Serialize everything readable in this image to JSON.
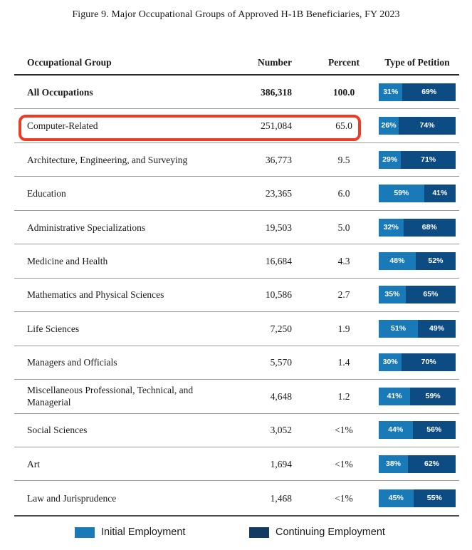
{
  "figure": {
    "title": "Figure 9. Major Occupational Groups of Approved H-1B Beneficiaries, FY 2023"
  },
  "table": {
    "headers": {
      "group": "Occupational Group",
      "number": "Number",
      "percent": "Percent",
      "petition": "Type of Petition"
    },
    "rows": [
      {
        "label": "All Occupations",
        "number": "386,318",
        "percent": "100.0",
        "initial_pct": 31,
        "continuing_pct": 69,
        "initial_label": "31%",
        "continuing_label": "69%"
      },
      {
        "label": "Computer-Related",
        "number": "251,084",
        "percent": "65.0",
        "initial_pct": 26,
        "continuing_pct": 74,
        "initial_label": "26%",
        "continuing_label": "74%"
      },
      {
        "label": "Architecture, Engineering, and Surveying",
        "number": "36,773",
        "percent": "9.5",
        "initial_pct": 29,
        "continuing_pct": 71,
        "initial_label": "29%",
        "continuing_label": "71%"
      },
      {
        "label": "Education",
        "number": "23,365",
        "percent": "6.0",
        "initial_pct": 59,
        "continuing_pct": 41,
        "initial_label": "59%",
        "continuing_label": "41%"
      },
      {
        "label": "Administrative Specializations",
        "number": "19,503",
        "percent": "5.0",
        "initial_pct": 32,
        "continuing_pct": 68,
        "initial_label": "32%",
        "continuing_label": "68%"
      },
      {
        "label": "Medicine and Health",
        "number": "16,684",
        "percent": "4.3",
        "initial_pct": 48,
        "continuing_pct": 52,
        "initial_label": "48%",
        "continuing_label": "52%"
      },
      {
        "label": "Mathematics and Physical Sciences",
        "number": "10,586",
        "percent": "2.7",
        "initial_pct": 35,
        "continuing_pct": 65,
        "initial_label": "35%",
        "continuing_label": "65%"
      },
      {
        "label": "Life Sciences",
        "number": "7,250",
        "percent": "1.9",
        "initial_pct": 51,
        "continuing_pct": 49,
        "initial_label": "51%",
        "continuing_label": "49%"
      },
      {
        "label": "Managers and Officials",
        "number": "5,570",
        "percent": "1.4",
        "initial_pct": 30,
        "continuing_pct": 70,
        "initial_label": "30%",
        "continuing_label": "70%"
      },
      {
        "label": "Miscellaneous Professional, Technical, and Managerial",
        "number": "4,648",
        "percent": "1.2",
        "initial_pct": 41,
        "continuing_pct": 59,
        "initial_label": "41%",
        "continuing_label": "59%"
      },
      {
        "label": "Social Sciences",
        "number": "3,052",
        "percent": "<1%",
        "initial_pct": 44,
        "continuing_pct": 56,
        "initial_label": "44%",
        "continuing_label": "56%"
      },
      {
        "label": "Art",
        "number": "1,694",
        "percent": "<1%",
        "initial_pct": 38,
        "continuing_pct": 62,
        "initial_label": "38%",
        "continuing_label": "62%"
      },
      {
        "label": "Law and Jurisprudence",
        "number": "1,468",
        "percent": "<1%",
        "initial_pct": 45,
        "continuing_pct": 55,
        "initial_label": "45%",
        "continuing_label": "55%"
      }
    ]
  },
  "legend": {
    "initial": "Initial Employment",
    "continuing": "Continuing Employment"
  },
  "colors": {
    "initial": "#1a7ab8",
    "continuing": "#0d4c82",
    "legend_continuing": "#123a63",
    "highlight": "#ee3b26"
  },
  "annotations": {
    "highlighted_row": "Computer-Related"
  },
  "chart_data": {
    "type": "table",
    "title": "Figure 9. Major Occupational Groups of Approved H-1B Beneficiaries, FY 2023",
    "columns": [
      "Occupational Group",
      "Number",
      "Percent",
      "Type of Petition"
    ],
    "categories": [
      "All Occupations",
      "Computer-Related",
      "Architecture, Engineering, and Surveying",
      "Education",
      "Administrative Specializations",
      "Medicine and Health",
      "Mathematics and Physical Sciences",
      "Life Sciences",
      "Managers and Officials",
      "Miscellaneous Professional, Technical, and Managerial",
      "Social Sciences",
      "Art",
      "Law and Jurisprudence"
    ],
    "series": [
      {
        "name": "Number",
        "values": [
          386318,
          251084,
          36773,
          23365,
          19503,
          16684,
          10586,
          7250,
          5570,
          4648,
          3052,
          1694,
          1468
        ]
      },
      {
        "name": "Percent",
        "values": [
          "100.0",
          "65.0",
          "9.5",
          "6.0",
          "5.0",
          "4.3",
          "2.7",
          "1.9",
          "1.4",
          "1.2",
          "<1%",
          "<1%",
          "<1%"
        ]
      },
      {
        "name": "Initial Employment %",
        "values": [
          31,
          26,
          29,
          59,
          32,
          48,
          35,
          51,
          30,
          41,
          44,
          38,
          45
        ]
      },
      {
        "name": "Continuing Employment %",
        "values": [
          69,
          74,
          71,
          41,
          68,
          52,
          65,
          49,
          70,
          59,
          56,
          62,
          55
        ]
      }
    ],
    "legend": [
      "Initial Employment",
      "Continuing Employment"
    ],
    "legend_position": "bottom",
    "annotation": "Computer-Related row outlined with a red rounded rectangle"
  }
}
